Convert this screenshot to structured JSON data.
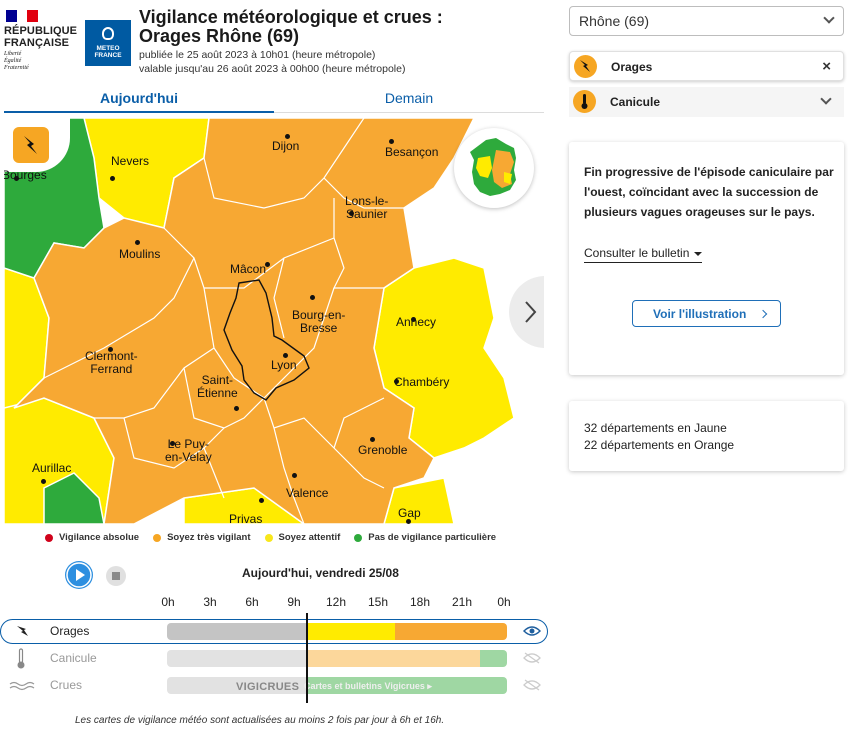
{
  "header": {
    "rf_lines": [
      "RÉPUBLIQUE",
      "FRANÇAISE"
    ],
    "rf_motto": [
      "Liberté",
      "Égalité",
      "Fraternité"
    ],
    "mf_logo": [
      "METEO",
      "FRANCE"
    ],
    "title_line1": "Vigilance météorologique et crues :",
    "title_line2": "Orages Rhône (69)",
    "published": "publiée le 25 août 2023 à 10h01 (heure métropole)",
    "valid": "valable jusqu'au 26 août 2023 à 00h00 (heure métropole)"
  },
  "tabs": [
    {
      "label": "Aujourd'hui",
      "active": true
    },
    {
      "label": "Demain",
      "active": false
    }
  ],
  "map": {
    "active_risk_icon": "thunderstorm-icon",
    "cities": [
      {
        "name": "Bourges",
        "lines": [
          "Bourges"
        ]
      },
      {
        "name": "Nevers",
        "lines": [
          "Nevers"
        ]
      },
      {
        "name": "Dijon",
        "lines": [
          "Dijon"
        ]
      },
      {
        "name": "Besançon",
        "lines": [
          "Besançon"
        ]
      },
      {
        "name": "Lons-le-Saunier",
        "lines": [
          "Lons-le-",
          "Saunier"
        ]
      },
      {
        "name": "Moulins",
        "lines": [
          "Moulins"
        ]
      },
      {
        "name": "Mâcon",
        "lines": [
          "Mâcon"
        ]
      },
      {
        "name": "Bourg-en-Bresse",
        "lines": [
          "Bourg-en-",
          "Bresse"
        ]
      },
      {
        "name": "Annecy",
        "lines": [
          "Annecy"
        ]
      },
      {
        "name": "Clermont-Ferrand",
        "lines": [
          "Clermont-",
          "Ferrand"
        ]
      },
      {
        "name": "Lyon",
        "lines": [
          "Lyon"
        ]
      },
      {
        "name": "Chambéry",
        "lines": [
          "Chambéry"
        ]
      },
      {
        "name": "Saint-Étienne",
        "lines": [
          "Saint-",
          "Étienne"
        ]
      },
      {
        "name": "Le Puy-en-Velay",
        "lines": [
          "Le Puy-",
          "en-Velay"
        ]
      },
      {
        "name": "Grenoble",
        "lines": [
          "Grenoble"
        ]
      },
      {
        "name": "Aurillac",
        "lines": [
          "Aurillac"
        ]
      },
      {
        "name": "Valence",
        "lines": [
          "Valence"
        ]
      },
      {
        "name": "Privas",
        "lines": [
          "Privas"
        ]
      },
      {
        "name": "Gap",
        "lines": [
          "Gap"
        ]
      }
    ]
  },
  "legend": [
    {
      "label": "Vigilance absolue",
      "color": "#d0021b"
    },
    {
      "label": "Soyez très vigilant",
      "color": "#f6a623"
    },
    {
      "label": "Soyez attentif",
      "color": "#f8e71c"
    },
    {
      "label": "Pas de vigilance particulière",
      "color": "#2eaa3c"
    }
  ],
  "timeline": {
    "date": "Aujourd'hui, vendredi 25/08",
    "hours": [
      "0h",
      "3h",
      "6h",
      "9h",
      "12h",
      "15h",
      "18h",
      "21h",
      "0h"
    ],
    "current_time_fraction": 0.41,
    "rows": [
      {
        "label": "Orages",
        "icon": "thunderstorm-icon",
        "visible_icon": "eye-icon",
        "active": true,
        "segments": [
          {
            "color": "#c4c4c4",
            "fraction": 0.41
          },
          {
            "color": "#ffeb00",
            "fraction": 0.26
          },
          {
            "color": "#f7a833",
            "fraction": 0.33
          }
        ]
      },
      {
        "label": "Canicule",
        "icon": "thermometer-icon",
        "visible_icon": "eye-off-icon",
        "active": false,
        "segments": [
          {
            "color": "#e2e2e2",
            "fraction": 0.41
          },
          {
            "color": "#fcd79b",
            "fraction": 0.51
          },
          {
            "color": "#9fd7a3",
            "fraction": 0.08
          }
        ]
      },
      {
        "label": "Crues",
        "icon": "waves-icon",
        "visible_icon": "eye-off-icon",
        "active": false,
        "segments": [
          {
            "color": "#e2e2e2",
            "fraction": 0.41
          },
          {
            "color": "#9fd7a3",
            "fraction": 0.59
          }
        ]
      }
    ],
    "vigicrues_label": "VIGICRUES",
    "vigicrues_link": "Cartes et bulletins Vigicrues ▸",
    "footnote": "Les cartes de vigilance météo sont actualisées au moins 2 fois par jour à 6h et 16h."
  },
  "sidebar": {
    "department": "Rhône (69)",
    "risks": [
      {
        "label": "Orages",
        "icon": "thunderstorm-icon",
        "action": "×",
        "selected": true
      },
      {
        "label": "Canicule",
        "icon": "thermometer-icon",
        "selected": false
      }
    ],
    "bulletin_text": "Fin progressive de l'épisode caniculaire par l'ouest, coïncidant avec la succession de plusieurs vagues orageuses sur le pays.",
    "bulletin_link": "Consulter le bulletin",
    "illustration_button": "Voir l'illustration",
    "stats": [
      "32 départements en Jaune",
      "22 départements en Orange"
    ]
  }
}
